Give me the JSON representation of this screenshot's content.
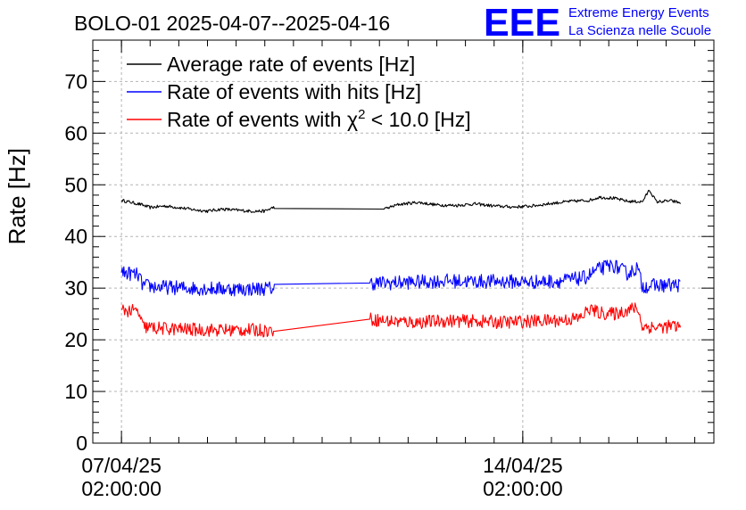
{
  "chart_data": {
    "type": "line",
    "title": "BOLO-01 2025-04-07--2025-04-16",
    "ylabel": "Rate [Hz]",
    "xlabel": "",
    "ylim": [
      0,
      78
    ],
    "yticks": [
      0,
      10,
      20,
      30,
      40,
      50,
      60,
      70
    ],
    "xlim": [
      "2025-04-06T14:00:00",
      "2025-04-17T10:00:00"
    ],
    "xticks": [
      {
        "x": "2025-04-07T02:00:00",
        "date": "07/04/25",
        "time": "02:00:00"
      },
      {
        "x": "2025-04-14T02:00:00",
        "date": "14/04/25",
        "time": "02:00:00"
      }
    ],
    "grid": true,
    "legend_position": "top-left",
    "series": [
      {
        "name": "Average rate of events [Hz]",
        "color": "#000000",
        "points": [
          [
            "2025-04-07T02:00:00",
            47.0
          ],
          [
            "2025-04-07T06:00:00",
            46.6
          ],
          [
            "2025-04-07T10:00:00",
            46.2
          ],
          [
            "2025-04-07T14:00:00",
            45.6
          ],
          [
            "2025-04-07T20:00:00",
            45.9
          ],
          [
            "2025-04-08T02:00:00",
            45.6
          ],
          [
            "2025-04-08T08:00:00",
            45.2
          ],
          [
            "2025-04-08T14:00:00",
            44.9
          ],
          [
            "2025-04-08T20:00:00",
            45.3
          ],
          [
            "2025-04-09T02:00:00",
            45.1
          ],
          [
            "2025-04-09T08:00:00",
            44.9
          ],
          [
            "2025-04-09T14:00:00",
            44.9
          ],
          [
            "2025-04-09T18:00:00",
            45.7
          ],
          [
            "2025-04-11T16:00:00",
            45.3
          ],
          [
            "2025-04-11T22:00:00",
            46.2
          ],
          [
            "2025-04-12T06:00:00",
            46.6
          ],
          [
            "2025-04-12T14:00:00",
            46.1
          ],
          [
            "2025-04-12T22:00:00",
            46.0
          ],
          [
            "2025-04-13T06:00:00",
            46.3
          ],
          [
            "2025-04-13T14:00:00",
            45.9
          ],
          [
            "2025-04-13T22:00:00",
            45.7
          ],
          [
            "2025-04-14T06:00:00",
            45.9
          ],
          [
            "2025-04-14T14:00:00",
            46.4
          ],
          [
            "2025-04-14T22:00:00",
            46.8
          ],
          [
            "2025-04-15T06:00:00",
            47.0
          ],
          [
            "2025-04-15T10:00:00",
            47.6
          ],
          [
            "2025-04-15T16:00:00",
            47.4
          ],
          [
            "2025-04-15T22:00:00",
            46.8
          ],
          [
            "2025-04-16T04:00:00",
            46.7
          ],
          [
            "2025-04-16T07:00:00",
            49.0
          ],
          [
            "2025-04-16T10:00:00",
            46.7
          ],
          [
            "2025-04-16T16:00:00",
            46.9
          ],
          [
            "2025-04-16T20:00:00",
            46.5
          ]
        ]
      },
      {
        "name": "Rate of events with hits [Hz]",
        "color": "#0000ff",
        "points": [
          [
            "2025-04-07T02:00:00",
            33.0
          ],
          [
            "2025-04-07T06:00:00",
            32.8
          ],
          [
            "2025-04-07T09:00:00",
            32.5
          ],
          [
            "2025-04-07T11:00:00",
            30.5
          ],
          [
            "2025-04-07T18:00:00",
            30.2
          ],
          [
            "2025-04-08T06:00:00",
            30.0
          ],
          [
            "2025-04-08T18:00:00",
            29.9
          ],
          [
            "2025-04-09T06:00:00",
            29.8
          ],
          [
            "2025-04-09T18:00:00",
            30.0
          ],
          [
            "2025-04-11T10:00:00",
            31.0
          ],
          [
            "2025-04-11T18:00:00",
            31.0
          ],
          [
            "2025-04-12T06:00:00",
            31.2
          ],
          [
            "2025-04-12T18:00:00",
            31.4
          ],
          [
            "2025-04-13T06:00:00",
            31.3
          ],
          [
            "2025-04-13T18:00:00",
            31.3
          ],
          [
            "2025-04-14T06:00:00",
            31.2
          ],
          [
            "2025-04-14T18:00:00",
            31.4
          ],
          [
            "2025-04-15T04:00:00",
            32.0
          ],
          [
            "2025-04-15T09:00:00",
            33.5
          ],
          [
            "2025-04-15T14:00:00",
            34.3
          ],
          [
            "2025-04-15T16:00:00",
            34.4
          ],
          [
            "2025-04-15T22:00:00",
            32.8
          ],
          [
            "2025-04-16T02:00:00",
            34.0
          ],
          [
            "2025-04-16T04:00:00",
            30.4
          ],
          [
            "2025-04-16T10:00:00",
            30.5
          ],
          [
            "2025-04-16T16:00:00",
            30.6
          ],
          [
            "2025-04-16T20:00:00",
            30.6
          ]
        ]
      },
      {
        "name": "Rate of events with χ² < 10.0 [Hz]",
        "color": "#ff0000",
        "points": [
          [
            "2025-04-07T02:00:00",
            25.8
          ],
          [
            "2025-04-07T06:00:00",
            25.6
          ],
          [
            "2025-04-07T09:00:00",
            25.4
          ],
          [
            "2025-04-07T11:00:00",
            22.5
          ],
          [
            "2025-04-07T18:00:00",
            22.2
          ],
          [
            "2025-04-08T06:00:00",
            22.0
          ],
          [
            "2025-04-08T18:00:00",
            21.9
          ],
          [
            "2025-04-09T06:00:00",
            21.9
          ],
          [
            "2025-04-09T18:00:00",
            21.8
          ],
          [
            "2025-04-11T10:00:00",
            24.0
          ],
          [
            "2025-04-11T18:00:00",
            23.6
          ],
          [
            "2025-04-12T06:00:00",
            23.4
          ],
          [
            "2025-04-12T18:00:00",
            23.7
          ],
          [
            "2025-04-13T06:00:00",
            23.6
          ],
          [
            "2025-04-13T18:00:00",
            23.4
          ],
          [
            "2025-04-14T06:00:00",
            23.6
          ],
          [
            "2025-04-14T18:00:00",
            23.8
          ],
          [
            "2025-04-15T02:00:00",
            24.2
          ],
          [
            "2025-04-15T06:00:00",
            26.0
          ],
          [
            "2025-04-15T10:00:00",
            25.2
          ],
          [
            "2025-04-15T16:00:00",
            25.0
          ],
          [
            "2025-04-15T22:00:00",
            25.8
          ],
          [
            "2025-04-16T02:00:00",
            26.2
          ],
          [
            "2025-04-16T04:00:00",
            22.6
          ],
          [
            "2025-04-16T10:00:00",
            22.4
          ],
          [
            "2025-04-16T16:00:00",
            22.6
          ],
          [
            "2025-04-16T20:00:00",
            22.5
          ]
        ]
      }
    ],
    "noise": [
      0.3,
      1.4,
      1.3
    ]
  },
  "legend": {
    "avg": "Average rate of events [Hz]",
    "hits": "Rate of events with hits [Hz]",
    "chi_prefix": "Rate of events with χ",
    "chi_sup": "2",
    "chi_suffix": " < 10.0 [Hz]"
  },
  "logo": {
    "letters": "EEE",
    "line1": "Extreme Energy Events",
    "line2": "La Scienza nelle Scuole",
    "color": "#0000ff"
  }
}
